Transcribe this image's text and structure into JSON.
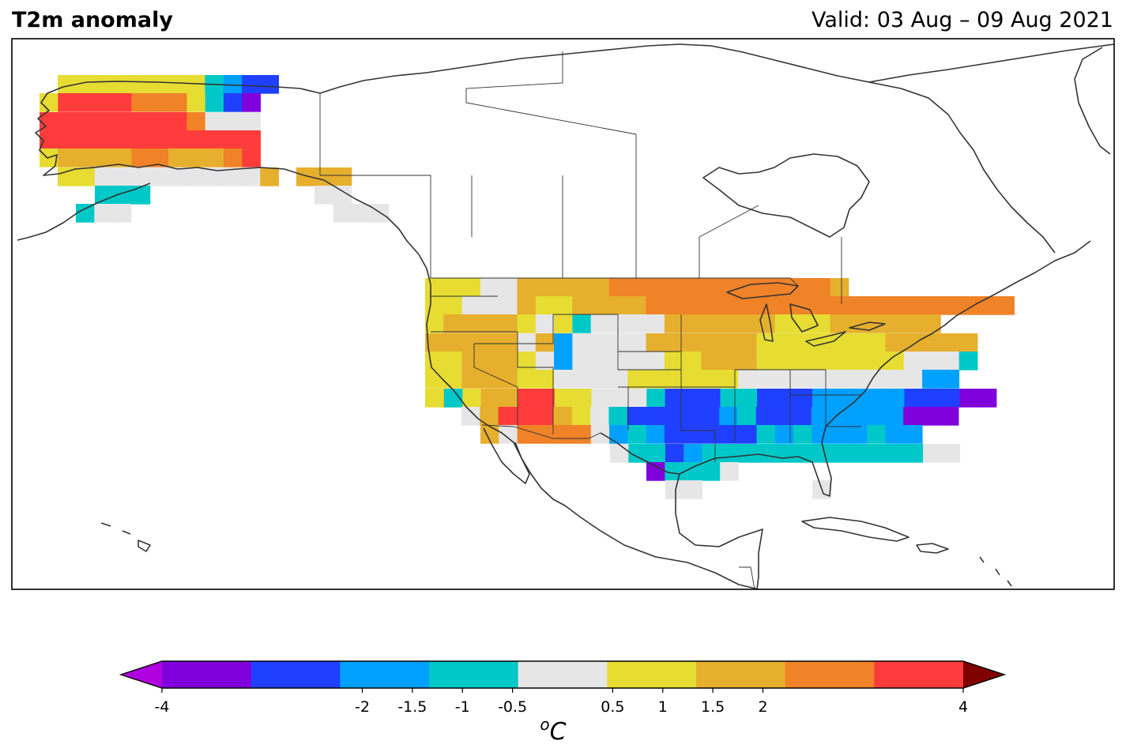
{
  "header": {
    "title": "T2m anomaly",
    "valid": "Valid: 03 Aug – 09 Aug 2021"
  },
  "map": {
    "region": "North America",
    "variable": "2-metre temperature anomaly"
  },
  "colorbar": {
    "unit_base": "o",
    "unit_letter": "C",
    "boundaries": [
      -4,
      -2,
      -1.5,
      -1,
      -0.5,
      0.5,
      1,
      1.5,
      2,
      4
    ],
    "tick_labels": [
      "-4",
      "-2",
      "-1.5",
      "-1",
      "-0.5",
      "0.5",
      "1",
      "1.5",
      "2",
      "4"
    ],
    "colors": [
      "#8000dc",
      "#2040ff",
      "#00a0ff",
      "#00c8c8",
      "#e6e6e6",
      "#e6dc32",
      "#e6af2d",
      "#f08228",
      "#ff3c3c"
    ],
    "under_color": "#b000e0",
    "over_color": "#800000"
  },
  "color_key": {
    "P": "#8000dc",
    "B": "#2040ff",
    "L": "#00a0ff",
    "C": "#00c8c8",
    "G": "#e6e6e6",
    "Y": "#e6dc32",
    "O": "#e6af2d",
    "R": "#f08228",
    "X": "#ff3c3c"
  },
  "anomaly_grid": {
    "rows": [
      {
        "cells": "YYYYYYYYCLBB"
      },
      {
        "cells": "YXXXXRRRYCBP"
      },
      {
        "cells": "XXXXXXXXRGGG"
      },
      {
        "cells": "XXXXXXXXXXXX"
      },
      {
        "cells": "YOOOORROOORX"
      },
      {
        "cells": "YYGGGGGGGGGO"
      },
      {
        "cells": "CCC"
      },
      {
        "cells": "CGG"
      },
      {
        "cells": "OOO"
      },
      {
        "cells": "GG"
      },
      {
        "cells": "GGG"
      },
      {
        "cells": "YYYGGOOOOORRRRRRRRRRRRO"
      },
      {
        "cells": "YYGGGOYYOOOORRRRRRRRRRRRRRRRRRRR"
      },
      {
        "cells": "YOOOOYGYCGGGGOOOOOOYYYOOOOOO"
      },
      {
        "cells": "OOOOOGOLGGGGOOOOOOYYYYYYYOOOOO"
      },
      {
        "cells": "YYOOOYGLGGGGGYYOOOYYYYYYYYGGGC"
      },
      {
        "cells": "YYOOOYYGGGGYYYYYYGGGGGGGGGGLL"
      },
      {
        "cells": "YOOOOOYYGGGGGGCCCCLLBLBLLBBB"
      },
      {
        "cells": "CYOOXXYYGGGCBBBCCBBBLLLLLBBBPP"
      },
      {
        "cells": "GOXXXOYGCBBBBBLCBBBLLLLLPPP"
      },
      {
        "cells": "OGRRRRGLCLBBBBBCLCLLLCLL"
      },
      {
        "cells": "GCCBLCCCCCCCCCCCCGG"
      },
      {
        "cells": "PCCCG"
      },
      {
        "cells": "GG"
      },
      {
        "cells": "G"
      }
    ]
  }
}
